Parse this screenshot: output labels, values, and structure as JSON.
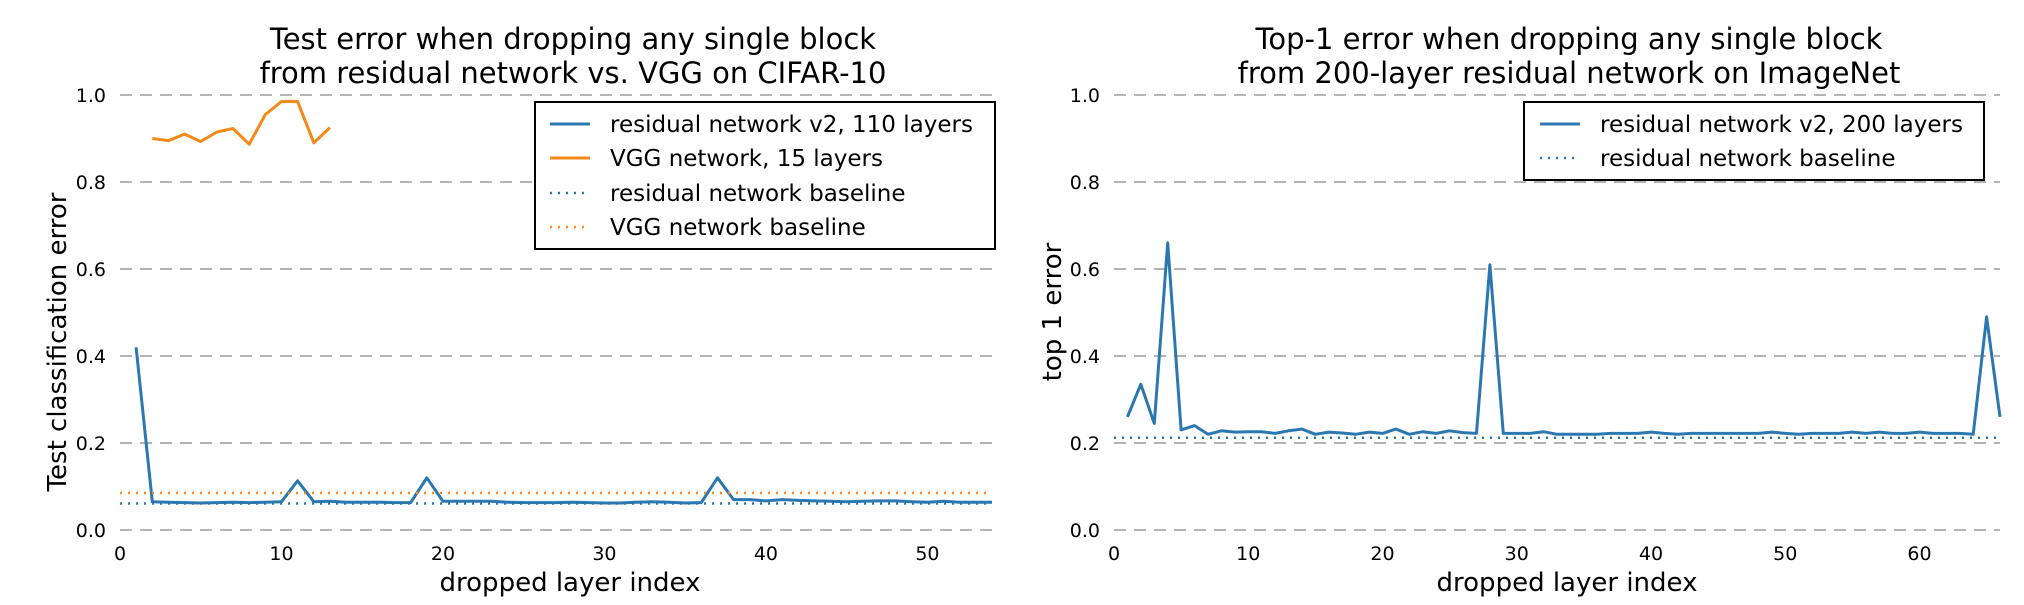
{
  "colors": {
    "residual": "#2b77b0",
    "vgg": "#f28a1a",
    "grid": "#9a9a9a"
  },
  "chart_data": [
    {
      "type": "line",
      "title_line1": "Test error when dropping any single block",
      "title_line2": "from residual network vs. VGG on CIFAR-10",
      "xlabel": "dropped layer index",
      "ylabel": "Test classification error",
      "xlim": [
        0,
        54
      ],
      "ylim": [
        0,
        1.0
      ],
      "xticks": [
        0,
        10,
        20,
        30,
        40,
        50
      ],
      "yticks": [
        0.0,
        0.2,
        0.4,
        0.6,
        0.8,
        1.0
      ],
      "grid": "horizontal dashed",
      "legend_position": "top-right",
      "series": [
        {
          "name": "residual network v2, 110 layers",
          "style": "solid",
          "color_key": "residual",
          "x": [
            1,
            2,
            3,
            4,
            5,
            6,
            7,
            8,
            9,
            10,
            11,
            12,
            13,
            14,
            15,
            16,
            17,
            18,
            19,
            20,
            21,
            22,
            23,
            24,
            25,
            26,
            27,
            28,
            29,
            30,
            31,
            32,
            33,
            34,
            35,
            36,
            37,
            38,
            39,
            40,
            41,
            42,
            43,
            44,
            45,
            46,
            47,
            48,
            49,
            50,
            51,
            52,
            53,
            54
          ],
          "y": [
            0.42,
            0.065,
            0.064,
            0.063,
            0.062,
            0.063,
            0.064,
            0.063,
            0.064,
            0.065,
            0.113,
            0.065,
            0.066,
            0.064,
            0.064,
            0.064,
            0.063,
            0.063,
            0.12,
            0.066,
            0.066,
            0.066,
            0.066,
            0.064,
            0.063,
            0.063,
            0.063,
            0.064,
            0.063,
            0.062,
            0.062,
            0.064,
            0.065,
            0.064,
            0.062,
            0.063,
            0.12,
            0.07,
            0.07,
            0.067,
            0.07,
            0.068,
            0.067,
            0.066,
            0.065,
            0.066,
            0.067,
            0.067,
            0.065,
            0.064,
            0.066,
            0.064,
            0.064,
            0.064
          ]
        },
        {
          "name": "VGG network, 15 layers",
          "style": "solid",
          "color_key": "vgg",
          "x": [
            2,
            3,
            4,
            5,
            6,
            7,
            8,
            9,
            10,
            11,
            12,
            13
          ],
          "y": [
            0.9,
            0.895,
            0.91,
            0.893,
            0.915,
            0.923,
            0.887,
            0.955,
            0.985,
            0.985,
            0.89,
            0.925
          ]
        },
        {
          "name": "residual network baseline",
          "style": "dotted",
          "color_key": "residual",
          "constant": 0.061
        },
        {
          "name": "VGG network baseline",
          "style": "dotted",
          "color_key": "vgg",
          "constant": 0.085
        }
      ]
    },
    {
      "type": "line",
      "title_line1": "Top-1 error when dropping any single block",
      "title_line2": "from 200-layer residual network on ImageNet",
      "xlabel": "dropped layer index",
      "ylabel": "top 1 error",
      "xlim": [
        0,
        66
      ],
      "ylim": [
        0,
        1.0
      ],
      "xticks": [
        0,
        10,
        20,
        30,
        40,
        50,
        60
      ],
      "yticks": [
        0.0,
        0.2,
        0.4,
        0.6,
        0.8,
        1.0
      ],
      "grid": "horizontal dashed",
      "legend_position": "top-right",
      "series": [
        {
          "name": "residual network v2, 200 layers",
          "style": "solid",
          "color_key": "residual",
          "x": [
            1,
            2,
            3,
            4,
            5,
            6,
            7,
            8,
            9,
            10,
            11,
            12,
            13,
            14,
            15,
            16,
            17,
            18,
            19,
            20,
            21,
            22,
            23,
            24,
            25,
            26,
            27,
            28,
            29,
            30,
            31,
            32,
            33,
            34,
            35,
            36,
            37,
            38,
            39,
            40,
            41,
            42,
            43,
            44,
            45,
            46,
            47,
            48,
            49,
            50,
            51,
            52,
            53,
            54,
            55,
            56,
            57,
            58,
            59,
            60,
            61,
            62,
            63,
            64,
            65,
            66
          ],
          "y": [
            0.26,
            0.335,
            0.245,
            0.66,
            0.23,
            0.24,
            0.22,
            0.228,
            0.225,
            0.226,
            0.226,
            0.222,
            0.228,
            0.232,
            0.22,
            0.225,
            0.223,
            0.22,
            0.225,
            0.222,
            0.232,
            0.22,
            0.226,
            0.222,
            0.228,
            0.224,
            0.222,
            0.61,
            0.222,
            0.222,
            0.222,
            0.226,
            0.22,
            0.22,
            0.22,
            0.22,
            0.222,
            0.222,
            0.222,
            0.225,
            0.222,
            0.22,
            0.222,
            0.222,
            0.222,
            0.222,
            0.222,
            0.222,
            0.225,
            0.222,
            0.22,
            0.222,
            0.222,
            0.222,
            0.225,
            0.222,
            0.225,
            0.222,
            0.222,
            0.225,
            0.222,
            0.222,
            0.222,
            0.22,
            0.49,
            0.26
          ]
        },
        {
          "name": "residual network baseline",
          "style": "dotted",
          "color_key": "residual",
          "constant": 0.212
        }
      ]
    }
  ]
}
